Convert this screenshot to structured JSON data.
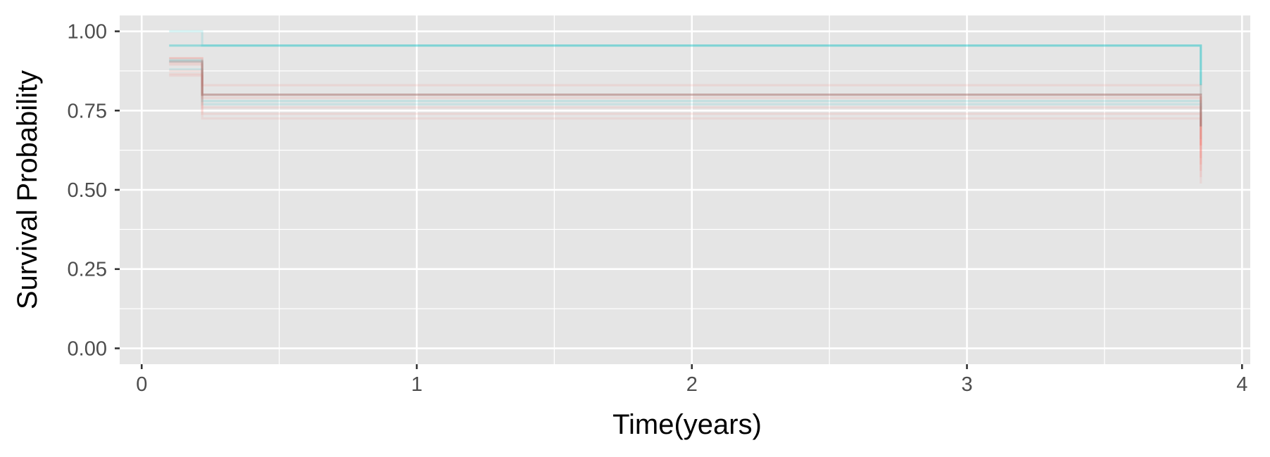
{
  "chart_data": {
    "type": "line",
    "subtype": "step",
    "title": "",
    "xlabel": "Time(years)",
    "ylabel": "Survival Probability",
    "xlim": [
      -0.08,
      4.03
    ],
    "ylim": [
      -0.05,
      1.05
    ],
    "x_ticks": [
      0,
      1,
      2,
      3,
      4
    ],
    "x_tick_labels": [
      "0",
      "1",
      "2",
      "3",
      "4"
    ],
    "y_ticks": [
      0,
      0.25,
      0.5,
      0.75,
      1
    ],
    "y_tick_labels": [
      "0.00",
      "0.25",
      "0.50",
      "0.75",
      "1.00"
    ],
    "grid": true,
    "background": "#e5e5e5",
    "colors": {
      "red": "#f8766d",
      "teal": "#00bfc4"
    },
    "legend": "none",
    "series": [
      {
        "color": "teal",
        "opacity": 0.35,
        "x": [
          0.1,
          0.22,
          3.85,
          3.85
        ],
        "y": [
          0.955,
          0.955,
          0.955,
          0.83
        ]
      },
      {
        "color": "teal",
        "opacity": 0.15,
        "x": [
          0.1,
          0.22,
          0.22,
          3.85,
          3.85
        ],
        "y": [
          1.0,
          1.0,
          0.955,
          0.955,
          0.8
        ]
      },
      {
        "color": "teal",
        "opacity": 0.15,
        "x": [
          0.1,
          0.22,
          0.22,
          3.85,
          3.85
        ],
        "y": [
          0.91,
          0.91,
          0.78,
          0.78,
          0.7
        ]
      },
      {
        "color": "teal",
        "opacity": 0.12,
        "x": [
          0.1,
          0.22,
          0.22,
          3.85,
          3.85
        ],
        "y": [
          0.88,
          0.88,
          0.77,
          0.77,
          0.66
        ]
      },
      {
        "color": "red",
        "opacity": 0.3,
        "x": [
          0.1,
          0.22,
          0.22,
          3.85,
          3.85
        ],
        "y": [
          0.915,
          0.915,
          0.8,
          0.8,
          0.64
        ]
      },
      {
        "color": "red",
        "opacity": 0.15,
        "x": [
          0.1,
          0.22,
          0.22,
          3.85,
          3.85
        ],
        "y": [
          0.895,
          0.895,
          0.83,
          0.83,
          0.6
        ]
      },
      {
        "color": "red",
        "opacity": 0.15,
        "x": [
          0.1,
          0.22,
          0.22,
          3.85,
          3.85
        ],
        "y": [
          0.875,
          0.875,
          0.79,
          0.79,
          0.58
        ]
      },
      {
        "color": "red",
        "opacity": 0.15,
        "x": [
          0.1,
          0.22,
          0.22,
          3.85,
          3.85
        ],
        "y": [
          0.865,
          0.865,
          0.74,
          0.74,
          0.56
        ]
      },
      {
        "color": "red",
        "opacity": 0.12,
        "x": [
          0.1,
          0.22,
          0.22,
          3.85,
          3.85
        ],
        "y": [
          0.86,
          0.86,
          0.725,
          0.725,
          0.52
        ]
      },
      {
        "color": "red",
        "opacity": 0.12,
        "x": [
          0.1,
          0.22,
          0.22,
          3.85,
          3.85
        ],
        "y": [
          0.9,
          0.9,
          0.76,
          0.76,
          0.54
        ]
      },
      {
        "color": "dark",
        "opacity": 0.25,
        "x": [
          0.1,
          0.22,
          0.22,
          3.85,
          3.85
        ],
        "y": [
          0.905,
          0.905,
          0.8,
          0.8,
          0.7
        ]
      }
    ]
  }
}
